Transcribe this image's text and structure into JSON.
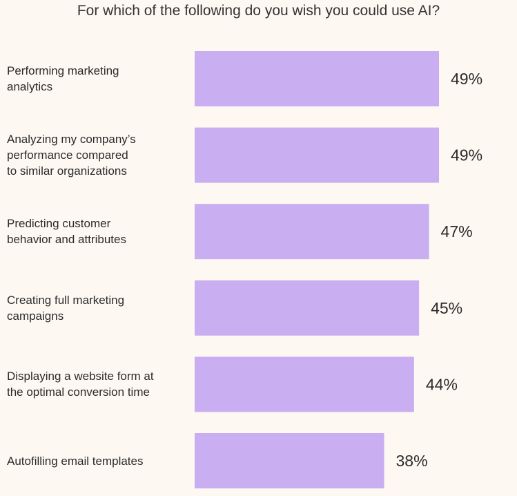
{
  "chart_data": {
    "type": "bar",
    "orientation": "horizontal",
    "title": "For which of the following do you wish you could use AI?",
    "categories": [
      [
        "Performing marketing",
        "analytics"
      ],
      [
        "Analyzing my company’s",
        "performance compared",
        "to similar organizations"
      ],
      [
        "Predicting customer",
        "behavior and attributes"
      ],
      [
        "Creating full marketing",
        "campaigns"
      ],
      [
        "Displaying a website form at",
        "the optimal conversion time"
      ],
      [
        "Autofilling email templates"
      ]
    ],
    "values": [
      49,
      49,
      47,
      45,
      44,
      38
    ],
    "value_labels": [
      "49%",
      "49%",
      "47%",
      "45%",
      "44%",
      "38%"
    ],
    "unit": "%",
    "grid": false,
    "legend": "none",
    "bar_color": "#c9aff2"
  }
}
